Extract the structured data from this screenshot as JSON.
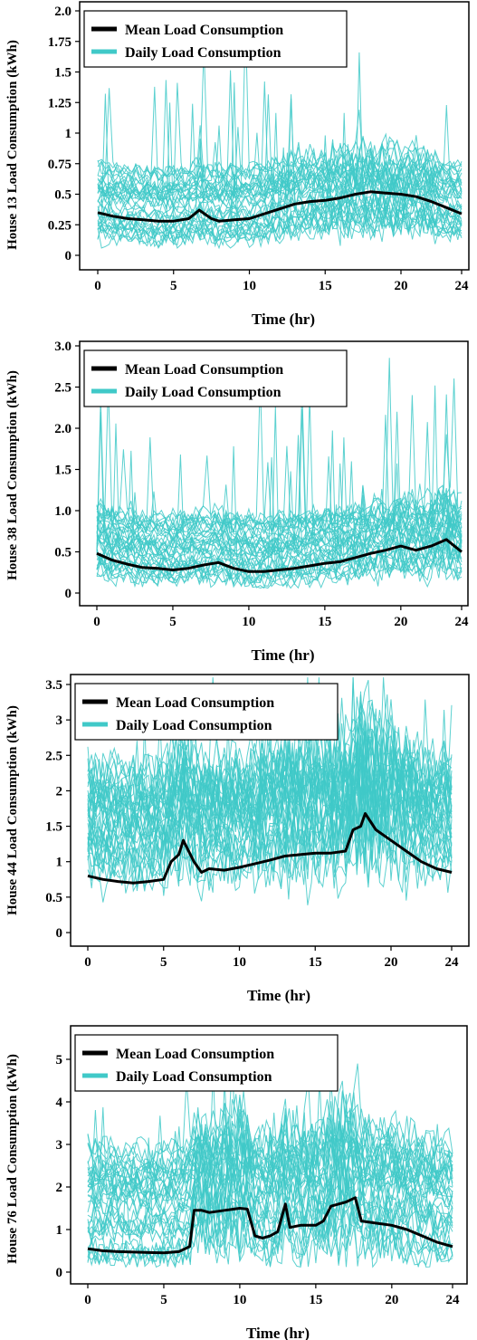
{
  "colors": {
    "mean": "#000000",
    "daily": "#40c9c8"
  },
  "chart_data": [
    {
      "type": "line",
      "ylabel": "House 13  Load  Consumption (kWh)",
      "xlabel": "Time (hr)",
      "xlim": [
        0,
        24
      ],
      "ylim": [
        0,
        2.0
      ],
      "xticks": [
        0,
        5,
        10,
        15,
        20,
        24
      ],
      "yticks": [
        0,
        0.25,
        0.5,
        0.75,
        1,
        1.25,
        1.5,
        1.75,
        2.0
      ],
      "ytick_labels": [
        "0",
        "0.25",
        "0.5",
        "0.75",
        "1",
        "1.25",
        "1.5",
        "1.75",
        "2.0"
      ],
      "legend": {
        "placement": "top-left",
        "entries": [
          "Mean Load Consumption",
          "Daily Load Consumption"
        ]
      },
      "series": [
        {
          "name": "Mean Load Consumption",
          "x": [
            0,
            1,
            2,
            3,
            4,
            5,
            6,
            6.7,
            7.5,
            8,
            9,
            10,
            11,
            12,
            13,
            14,
            15,
            16,
            17,
            18,
            19,
            20,
            21,
            22,
            23,
            24
          ],
          "y": [
            0.35,
            0.32,
            0.3,
            0.29,
            0.28,
            0.28,
            0.3,
            0.37,
            0.3,
            0.28,
            0.29,
            0.3,
            0.34,
            0.38,
            0.42,
            0.44,
            0.45,
            0.47,
            0.5,
            0.52,
            0.51,
            0.5,
            0.48,
            0.44,
            0.39,
            0.34
          ]
        }
      ],
      "daily_band": {
        "low": 0.1,
        "high": 0.7,
        "max": 1.9
      }
    },
    {
      "type": "line",
      "ylabel": "House 38  Load  Consumption (kWh)",
      "xlabel": "Time (hr)",
      "xlim": [
        0,
        24
      ],
      "ylim": [
        0,
        3.0
      ],
      "xticks": [
        0,
        5,
        10,
        15,
        20,
        24
      ],
      "yticks": [
        0,
        0.5,
        1.0,
        1.5,
        2.0,
        2.5,
        3.0
      ],
      "ytick_labels": [
        "0",
        "0.5",
        "1.0",
        "1.5",
        "2.0",
        "2.5",
        "3.0"
      ],
      "legend": {
        "placement": "top-left",
        "entries": [
          "Mean Load Consumption",
          "Daily Load Consumption"
        ]
      },
      "series": [
        {
          "name": "Mean Load Consumption",
          "x": [
            0,
            1,
            2,
            3,
            4,
            5,
            6,
            7,
            8,
            9,
            10,
            11,
            12,
            13,
            14,
            15,
            16,
            17,
            18,
            19,
            20,
            21,
            22,
            23,
            24
          ],
          "y": [
            0.48,
            0.4,
            0.35,
            0.31,
            0.3,
            0.28,
            0.3,
            0.34,
            0.37,
            0.3,
            0.26,
            0.26,
            0.28,
            0.3,
            0.33,
            0.36,
            0.38,
            0.43,
            0.48,
            0.52,
            0.57,
            0.52,
            0.57,
            0.65,
            0.5
          ]
        }
      ],
      "daily_band": {
        "low": 0.1,
        "high": 1.0,
        "max": 2.9
      }
    },
    {
      "type": "line",
      "ylabel": "House 44  Load  Consumption (kWh)",
      "xlabel": "Time (hr)",
      "xlim": [
        0,
        24
      ],
      "ylim": [
        0,
        3.5
      ],
      "xticks": [
        0,
        5,
        10,
        15,
        20,
        24
      ],
      "yticks": [
        0,
        0.5,
        1,
        1.5,
        2,
        2.5,
        3,
        3.5
      ],
      "ytick_labels": [
        "0",
        "0.5",
        "1",
        "1.5",
        "2",
        "2.5",
        "3",
        "3.5"
      ],
      "legend": {
        "placement": "top-left",
        "entries": [
          "Mean Load Consumption",
          "Daily Load Consumption"
        ]
      },
      "series": [
        {
          "name": "Mean Load Consumption",
          "x": [
            0,
            1,
            2,
            3,
            4,
            5,
            5.5,
            6,
            6.3,
            7,
            7.5,
            8,
            9,
            10,
            11,
            12,
            13,
            14,
            15,
            16,
            17,
            17.5,
            18,
            18.3,
            19,
            20,
            21,
            22,
            23,
            24
          ],
          "y": [
            0.8,
            0.75,
            0.72,
            0.7,
            0.72,
            0.75,
            1.0,
            1.1,
            1.3,
            1.0,
            0.85,
            0.9,
            0.88,
            0.92,
            0.97,
            1.02,
            1.08,
            1.1,
            1.12,
            1.12,
            1.15,
            1.45,
            1.5,
            1.68,
            1.45,
            1.3,
            1.15,
            1.0,
            0.9,
            0.85
          ]
        }
      ],
      "daily_band": {
        "low": 0.35,
        "high": 2.0,
        "max": 3.6
      }
    },
    {
      "type": "line",
      "ylabel": "House 76  Load  Consumption (kWh)",
      "xlabel": "Time (hr)",
      "xlim": [
        0,
        24
      ],
      "ylim": [
        0,
        5
      ],
      "xticks": [
        0,
        5,
        10,
        15,
        20,
        24
      ],
      "yticks": [
        0,
        1,
        2,
        3,
        4,
        5
      ],
      "ytick_labels": [
        "0",
        "1",
        "2",
        "3",
        "4",
        "5"
      ],
      "legend": {
        "placement": "top-left",
        "entries": [
          "Mean Load Consumption",
          "Daily Load Consumption"
        ]
      },
      "series": [
        {
          "name": "Mean Load Consumption",
          "x": [
            0,
            1,
            2,
            3,
            4,
            5,
            6,
            6.7,
            7,
            7.5,
            8,
            9,
            10,
            10.5,
            11,
            11.5,
            12,
            12.5,
            13,
            13.3,
            14,
            15,
            15.5,
            16,
            17,
            17.6,
            18,
            19,
            20,
            21,
            22,
            23,
            24
          ],
          "y": [
            0.55,
            0.5,
            0.48,
            0.47,
            0.46,
            0.45,
            0.48,
            0.6,
            1.45,
            1.45,
            1.4,
            1.45,
            1.5,
            1.48,
            0.85,
            0.8,
            0.85,
            0.95,
            1.6,
            1.05,
            1.1,
            1.1,
            1.2,
            1.55,
            1.65,
            1.75,
            1.2,
            1.15,
            1.1,
            1.0,
            0.85,
            0.7,
            0.6
          ]
        }
      ],
      "daily_band": {
        "low": 0.2,
        "high": 2.8,
        "max": 4.9
      }
    }
  ]
}
